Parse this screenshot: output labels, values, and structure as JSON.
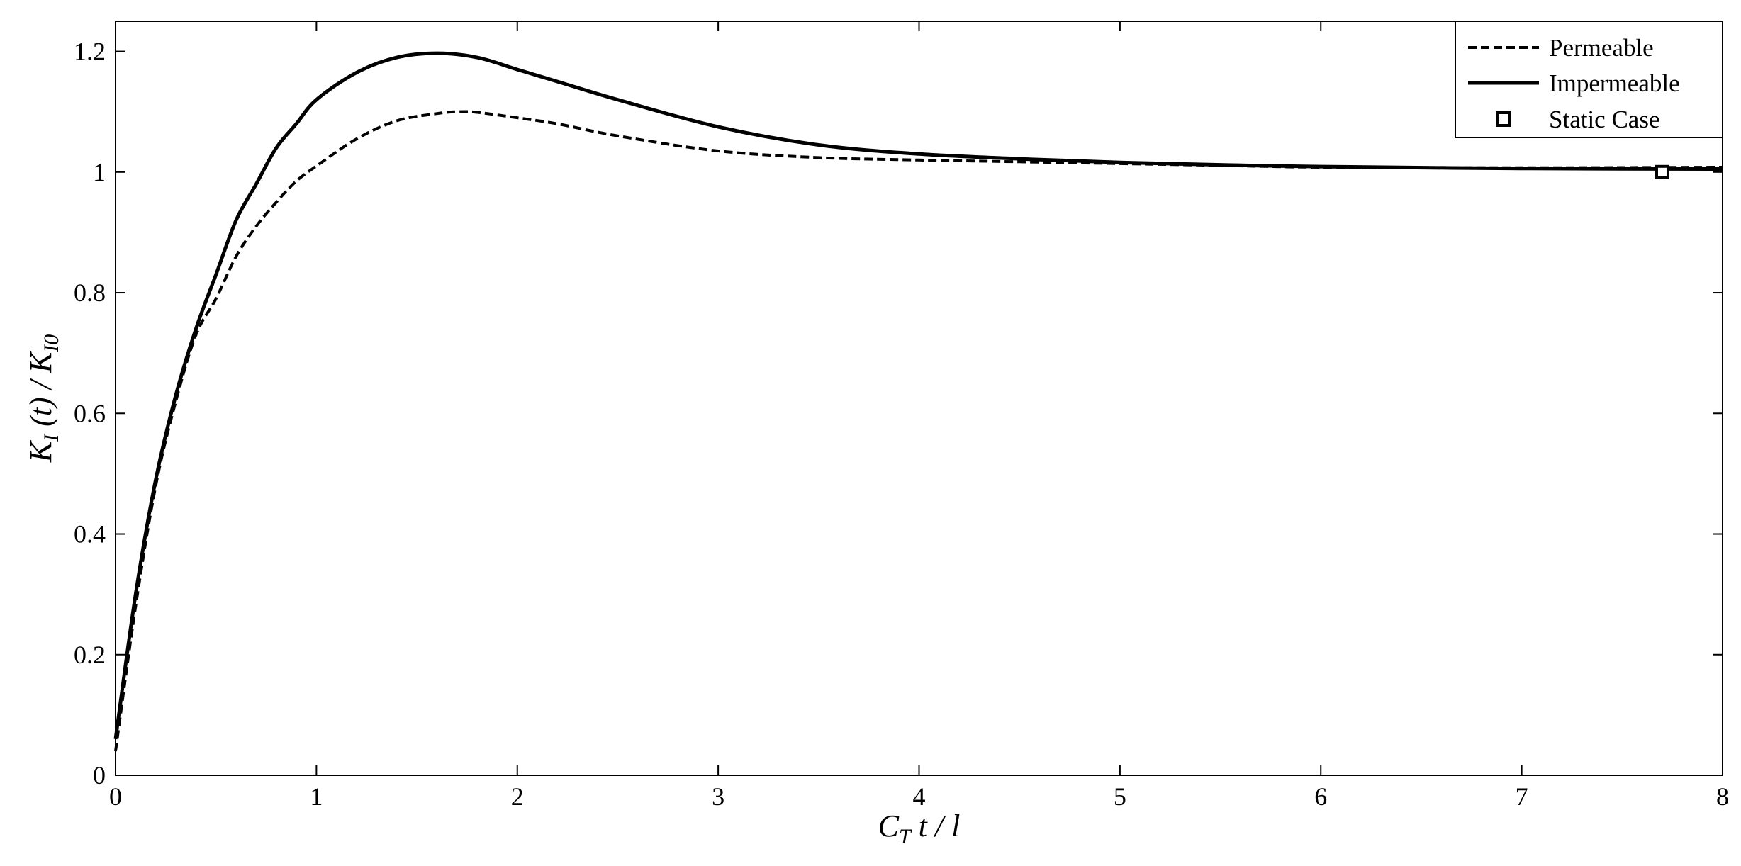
{
  "chart_data": {
    "type": "line",
    "xlabel": {
      "main": "C",
      "sub": "T",
      "rest": " t / l"
    },
    "ylabel": {
      "main1": "K",
      "sub1": "I",
      "mid": " (t) / K",
      "sub2": "I0"
    },
    "xlim": [
      0,
      8
    ],
    "ylim": [
      0,
      1.25
    ],
    "xticks": [
      0,
      1,
      2,
      3,
      4,
      5,
      6,
      7,
      8
    ],
    "xtick_labels": [
      "0",
      "1",
      "2",
      "3",
      "4",
      "5",
      "6",
      "7",
      "8"
    ],
    "yticks": [
      0,
      0.2,
      0.4,
      0.6,
      0.8,
      1.0,
      1.2
    ],
    "ytick_labels": [
      "0",
      "0.2",
      "0.4",
      "0.6",
      "0.8",
      "1",
      "1.2"
    ],
    "grid": false,
    "legend_position": "top-right",
    "series": [
      {
        "name": "Permeable",
        "style": "dashed",
        "color": "#000000",
        "x": [
          0,
          0.1,
          0.2,
          0.3,
          0.4,
          0.5,
          0.6,
          0.7,
          0.8,
          0.9,
          1.0,
          1.2,
          1.4,
          1.6,
          1.7,
          1.8,
          2.0,
          2.2,
          2.5,
          3.0,
          3.5,
          4.0,
          4.5,
          5.0,
          5.5,
          6.0,
          7.0,
          8.0
        ],
        "y": [
          0.04,
          0.28,
          0.48,
          0.62,
          0.73,
          0.79,
          0.86,
          0.91,
          0.95,
          0.985,
          1.01,
          1.055,
          1.085,
          1.097,
          1.1,
          1.099,
          1.09,
          1.08,
          1.06,
          1.035,
          1.024,
          1.02,
          1.017,
          1.014,
          1.011,
          1.008,
          1.007,
          1.008
        ]
      },
      {
        "name": "Impermeable",
        "style": "solid",
        "color": "#000000",
        "x": [
          0,
          0.1,
          0.2,
          0.3,
          0.4,
          0.5,
          0.6,
          0.7,
          0.8,
          0.9,
          1.0,
          1.2,
          1.4,
          1.6,
          1.8,
          2.0,
          2.2,
          2.5,
          3.0,
          3.5,
          4.0,
          4.5,
          5.0,
          5.5,
          6.0,
          7.0,
          8.0
        ],
        "y": [
          0.06,
          0.3,
          0.49,
          0.63,
          0.74,
          0.83,
          0.92,
          0.98,
          1.04,
          1.08,
          1.12,
          1.165,
          1.19,
          1.197,
          1.19,
          1.17,
          1.15,
          1.12,
          1.075,
          1.045,
          1.03,
          1.022,
          1.016,
          1.012,
          1.009,
          1.006,
          1.005
        ]
      }
    ],
    "markers": [
      {
        "name": "Static Case",
        "shape": "square",
        "x": 7.7,
        "y": 1.0
      }
    ]
  }
}
